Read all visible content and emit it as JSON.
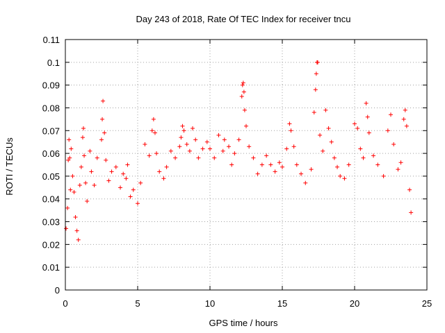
{
  "chart_data": {
    "type": "scatter",
    "title": "Day 243 of 2018, Rate Of TEC Index for receiver tncu",
    "xlabel": "GPS time / hours",
    "ylabel": "ROTI / TECUs",
    "xlim": [
      0,
      25
    ],
    "ylim": [
      0,
      0.11
    ],
    "xticks": [
      0,
      5,
      10,
      15,
      20,
      25
    ],
    "xtick_labels": [
      "0",
      "5",
      "10",
      "15",
      "20",
      "25"
    ],
    "yticks": [
      0,
      0.01,
      0.02,
      0.03,
      0.04,
      0.05,
      0.06,
      0.07,
      0.08,
      0.09,
      0.1,
      0.11
    ],
    "ytick_labels": [
      "0",
      "0.01",
      "0.02",
      "0.03",
      "0.04",
      "0.05",
      "0.06",
      "0.07",
      "0.08",
      "0.09",
      "0.1",
      "0.11"
    ],
    "grid": true,
    "marker": "+",
    "color": "#ff0000",
    "series": [
      {
        "points": [
          [
            0.05,
            0.027
          ],
          [
            0.15,
            0.036
          ],
          [
            0.2,
            0.057
          ],
          [
            0.25,
            0.066
          ],
          [
            0.3,
            0.058
          ],
          [
            0.35,
            0.044
          ],
          [
            0.4,
            0.062
          ],
          [
            0.5,
            0.05
          ],
          [
            0.6,
            0.043
          ],
          [
            0.7,
            0.032
          ],
          [
            0.8,
            0.026
          ],
          [
            0.9,
            0.022
          ],
          [
            1.0,
            0.046
          ],
          [
            1.1,
            0.054
          ],
          [
            1.2,
            0.067
          ],
          [
            1.25,
            0.071
          ],
          [
            1.3,
            0.059
          ],
          [
            1.4,
            0.047
          ],
          [
            1.5,
            0.039
          ],
          [
            1.7,
            0.061
          ],
          [
            1.8,
            0.052
          ],
          [
            2.0,
            0.046
          ],
          [
            2.2,
            0.058
          ],
          [
            2.5,
            0.066
          ],
          [
            2.55,
            0.075
          ],
          [
            2.6,
            0.083
          ],
          [
            2.7,
            0.069
          ],
          [
            2.8,
            0.057
          ],
          [
            3.0,
            0.048
          ],
          [
            3.2,
            0.052
          ],
          [
            3.5,
            0.054
          ],
          [
            3.8,
            0.045
          ],
          [
            4.0,
            0.051
          ],
          [
            4.2,
            0.049
          ],
          [
            4.3,
            0.055
          ],
          [
            4.5,
            0.041
          ],
          [
            4.7,
            0.044
          ],
          [
            5.0,
            0.038
          ],
          [
            5.2,
            0.047
          ],
          [
            5.5,
            0.064
          ],
          [
            5.8,
            0.059
          ],
          [
            6.0,
            0.07
          ],
          [
            6.1,
            0.075
          ],
          [
            6.2,
            0.069
          ],
          [
            6.3,
            0.06
          ],
          [
            6.5,
            0.052
          ],
          [
            6.8,
            0.049
          ],
          [
            7.0,
            0.054
          ],
          [
            7.3,
            0.061
          ],
          [
            7.6,
            0.058
          ],
          [
            7.9,
            0.063
          ],
          [
            8.0,
            0.067
          ],
          [
            8.1,
            0.072
          ],
          [
            8.2,
            0.07
          ],
          [
            8.4,
            0.064
          ],
          [
            8.6,
            0.061
          ],
          [
            8.8,
            0.071
          ],
          [
            9.0,
            0.066
          ],
          [
            9.2,
            0.058
          ],
          [
            9.5,
            0.062
          ],
          [
            9.8,
            0.065
          ],
          [
            10.0,
            0.062
          ],
          [
            10.3,
            0.058
          ],
          [
            10.6,
            0.068
          ],
          [
            10.9,
            0.061
          ],
          [
            11.0,
            0.066
          ],
          [
            11.3,
            0.063
          ],
          [
            11.5,
            0.055
          ],
          [
            11.7,
            0.06
          ],
          [
            12.0,
            0.066
          ],
          [
            12.2,
            0.085
          ],
          [
            12.25,
            0.09
          ],
          [
            12.3,
            0.091
          ],
          [
            12.35,
            0.087
          ],
          [
            12.4,
            0.079
          ],
          [
            12.5,
            0.072
          ],
          [
            12.7,
            0.063
          ],
          [
            13.0,
            0.058
          ],
          [
            13.3,
            0.051
          ],
          [
            13.6,
            0.055
          ],
          [
            13.9,
            0.059
          ],
          [
            14.2,
            0.055
          ],
          [
            14.5,
            0.052
          ],
          [
            14.8,
            0.056
          ],
          [
            15.0,
            0.054
          ],
          [
            15.3,
            0.062
          ],
          [
            15.5,
            0.073
          ],
          [
            15.6,
            0.07
          ],
          [
            15.8,
            0.063
          ],
          [
            16.0,
            0.055
          ],
          [
            16.3,
            0.051
          ],
          [
            16.6,
            0.047
          ],
          [
            17.0,
            0.053
          ],
          [
            17.2,
            0.078
          ],
          [
            17.3,
            0.088
          ],
          [
            17.35,
            0.095
          ],
          [
            17.4,
            0.1
          ],
          [
            17.45,
            0.1
          ],
          [
            17.6,
            0.068
          ],
          [
            17.8,
            0.061
          ],
          [
            18.0,
            0.079
          ],
          [
            18.2,
            0.071
          ],
          [
            18.4,
            0.065
          ],
          [
            18.6,
            0.058
          ],
          [
            18.8,
            0.054
          ],
          [
            19.0,
            0.05
          ],
          [
            19.3,
            0.049
          ],
          [
            19.6,
            0.055
          ],
          [
            20.0,
            0.073
          ],
          [
            20.2,
            0.071
          ],
          [
            20.4,
            0.062
          ],
          [
            20.6,
            0.058
          ],
          [
            20.8,
            0.082
          ],
          [
            20.9,
            0.076
          ],
          [
            21.0,
            0.069
          ],
          [
            21.3,
            0.059
          ],
          [
            21.6,
            0.055
          ],
          [
            22.0,
            0.05
          ],
          [
            22.3,
            0.07
          ],
          [
            22.5,
            0.077
          ],
          [
            22.7,
            0.064
          ],
          [
            23.0,
            0.053
          ],
          [
            23.2,
            0.056
          ],
          [
            23.4,
            0.075
          ],
          [
            23.5,
            0.079
          ],
          [
            23.6,
            0.072
          ],
          [
            23.8,
            0.044
          ],
          [
            23.9,
            0.034
          ]
        ]
      }
    ]
  }
}
